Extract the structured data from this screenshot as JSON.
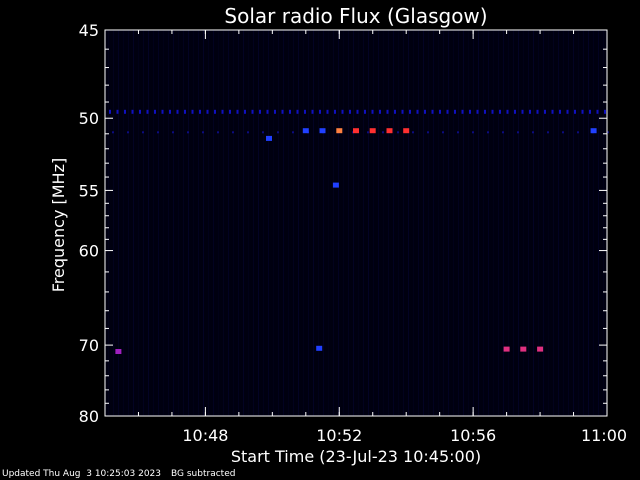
{
  "chart_data": {
    "type": "heatmap",
    "title": "Solar radio Flux (Glasgow)",
    "ylabel": "Frequency [MHz]",
    "xlabel": "Start Time (23-Jul-23 10:45:00)",
    "x_range_min": [
      45,
      60
    ],
    "y_range_mhz": [
      45,
      80
    ],
    "y_scale": "reciprocal",
    "y_ticks": [
      45,
      50,
      55,
      60,
      70,
      80
    ],
    "y_tick_labels": [
      "45",
      "50",
      "55",
      "60",
      "70",
      "80"
    ],
    "x_ticks_min": [
      48,
      52,
      56,
      60
    ],
    "x_tick_labels": [
      "10:48",
      "10:52",
      "10:56",
      "11:00"
    ],
    "background_color": "#000010",
    "band_color": "#1010c0",
    "events": [
      {
        "t": 52.0,
        "f": 50.8,
        "color": "#ff8040"
      },
      {
        "t": 52.5,
        "f": 50.8,
        "color": "#ff3030"
      },
      {
        "t": 53.0,
        "f": 50.8,
        "color": "#ff3030"
      },
      {
        "t": 53.5,
        "f": 50.8,
        "color": "#ff3030"
      },
      {
        "t": 54.0,
        "f": 50.8,
        "color": "#ff3030"
      },
      {
        "t": 57.0,
        "f": 70.5,
        "color": "#e03080"
      },
      {
        "t": 57.5,
        "f": 70.5,
        "color": "#e03080"
      },
      {
        "t": 58.0,
        "f": 70.5,
        "color": "#e03080"
      },
      {
        "t": 45.4,
        "f": 70.8,
        "color": "#a020c0"
      },
      {
        "t": 51.0,
        "f": 50.8,
        "color": "#2040ff"
      },
      {
        "t": 51.5,
        "f": 50.8,
        "color": "#2040ff"
      },
      {
        "t": 59.6,
        "f": 50.8,
        "color": "#2040ff"
      },
      {
        "t": 49.9,
        "f": 51.3,
        "color": "#2040ff"
      },
      {
        "t": 51.9,
        "f": 54.6,
        "color": "#2040ff"
      },
      {
        "t": 51.4,
        "f": 70.4,
        "color": "#2040ff"
      }
    ]
  },
  "footer": {
    "updated": "Updated Thu Aug  3 10:25:03 2023",
    "note": "BG subtracted"
  }
}
